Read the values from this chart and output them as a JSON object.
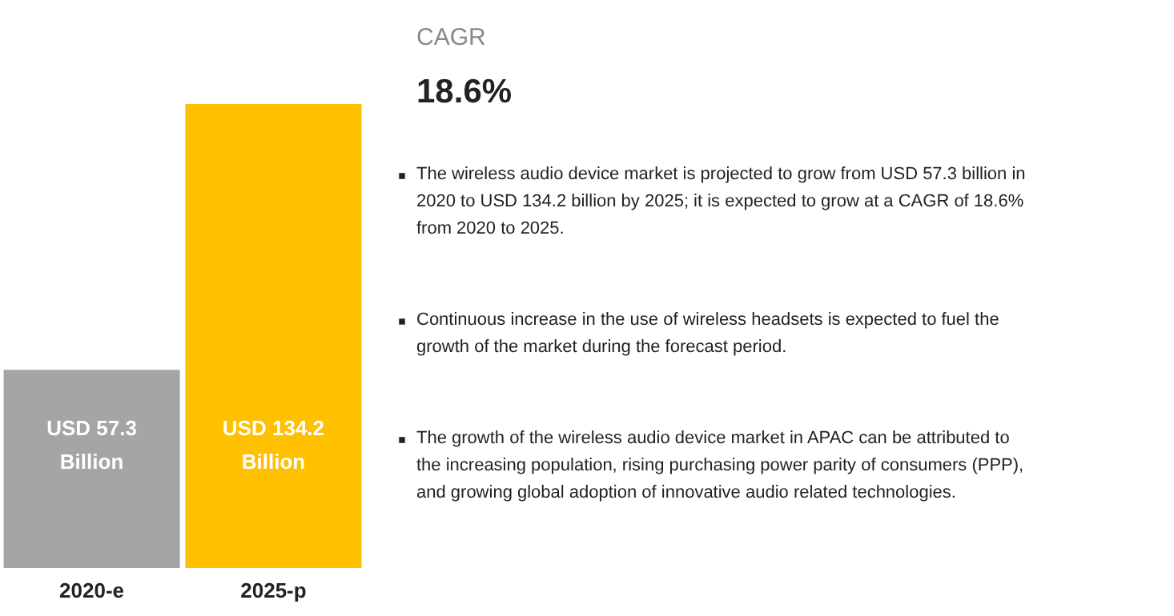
{
  "chart_data": {
    "type": "bar",
    "categories": [
      "2020-e",
      "2025-p"
    ],
    "values": [
      57.3,
      134.2
    ],
    "colors": [
      "#a5a5a5",
      "#ffc000"
    ],
    "value_labels": [
      "USD 57.3 Billion",
      "USD 134.2 Billion"
    ],
    "tick_labels": "x",
    "grid": false,
    "annotations": [
      "CAGR",
      "18.6%",
      "The wireless audio device market is projected to grow from USD 57.3 billion in 2020 to USD 134.2 billion by 2025; it is expected to grow at a CAGR of 18.6% from 2020 to 2025.",
      "Continuous increase in the use of wireless headsets is expected to fuel the growth of the market during the forecast period.",
      "The growth of the wireless audio device market in APAC can be attributed to the increasing population, rising purchasing power parity of consumers (PPP), and growing global adoption of innovative audio related technologies."
    ]
  }
}
